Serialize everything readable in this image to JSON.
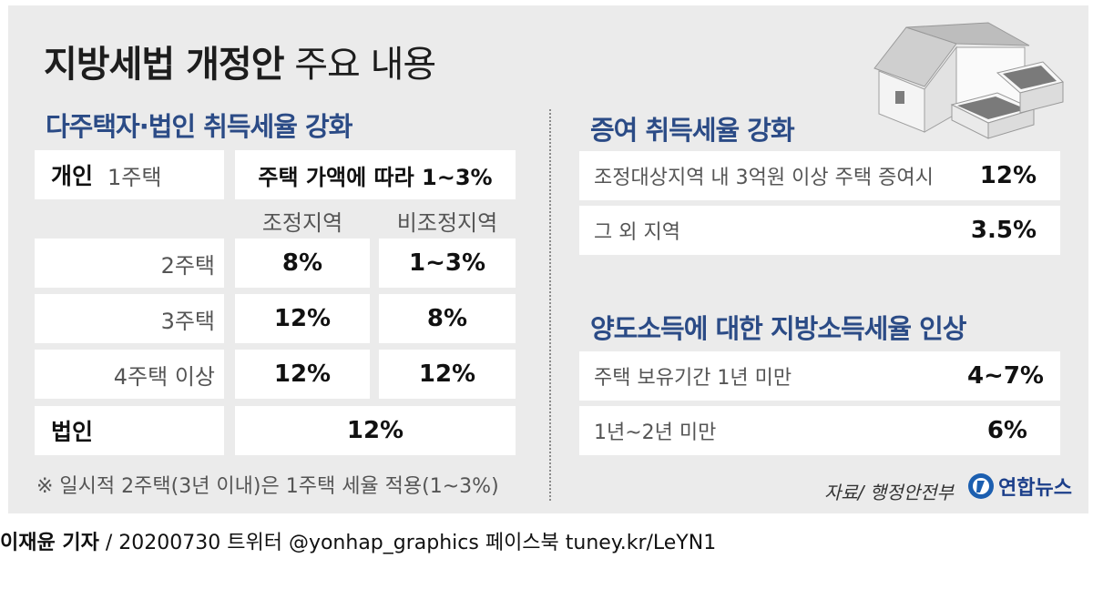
{
  "title": {
    "bold": "지방세법 개정안",
    "light": "주요 내용"
  },
  "left": {
    "heading": "다주택자·법인 취득세율 강화",
    "individual_label": "개인",
    "one_home_label": "1주택",
    "one_home_value": "주택 가액에 따라 1~3%",
    "col_headers": [
      "조정지역",
      "비조정지역"
    ],
    "rows": [
      {
        "label": "2주택",
        "adjusted": "8%",
        "non_adjusted": "1~3%"
      },
      {
        "label": "3주택",
        "adjusted": "12%",
        "non_adjusted": "8%"
      },
      {
        "label": "4주택 이상",
        "adjusted": "12%",
        "non_adjusted": "12%"
      }
    ],
    "corporate_label": "법인",
    "corporate_value": "12%",
    "note": "※ 일시적 2주택(3년 이내)은 1주택 세율 적용(1~3%)"
  },
  "right": {
    "gift": {
      "heading": "증여 취득세율 강화",
      "rows": [
        {
          "label": "조정대상지역 내 3억원 이상 주택 증여시",
          "value": "12%"
        },
        {
          "label": "그 외 지역",
          "value": "3.5%"
        }
      ]
    },
    "transfer": {
      "heading": "양도소득에 대한 지방소득세율 인상",
      "rows": [
        {
          "label": "주택 보유기간 1년 미만",
          "value": "4~7%"
        },
        {
          "label": "1년~2년 미만",
          "value": "6%"
        }
      ]
    }
  },
  "source": "자료/ 행정안전부",
  "logo": {
    "text": "연합뉴스",
    "icon": "yonhap-logo-icon"
  },
  "credit": {
    "author": "이재윤 기자",
    "rest": " / 20200730   트위터 @yonhap_graphics  페이스북 tuney.kr/LeYN1"
  },
  "illustration": {
    "icon": "house-and-money-icon"
  },
  "colors": {
    "heading": "#2b4b86",
    "panel": "#ebebeb",
    "box": "#ffffff"
  }
}
